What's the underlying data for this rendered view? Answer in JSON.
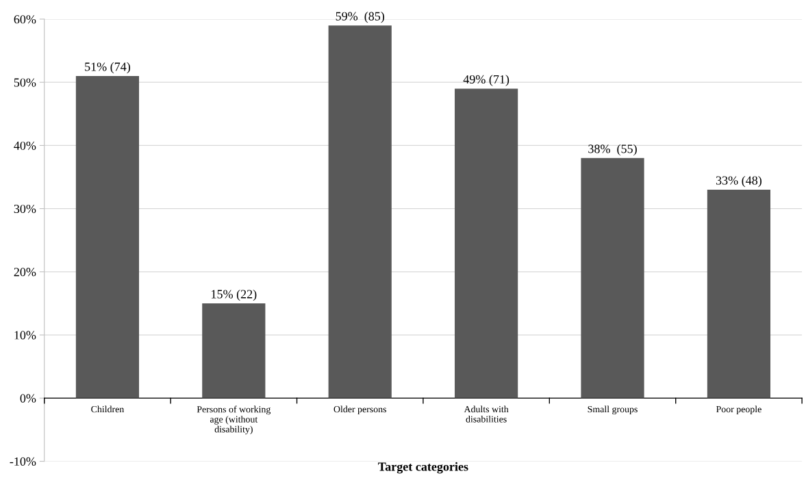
{
  "chart_data": {
    "type": "bar",
    "xlabel": "Target categories",
    "categories": [
      "Children",
      "Persons of working\nage (without\ndisability)",
      "Older persons",
      "Adults with\ndisabilities",
      "Small groups",
      "Poor people"
    ],
    "values": [
      51,
      15,
      59,
      49,
      38,
      33
    ],
    "value_labels": [
      "51% (74)",
      "15% (22)",
      "59%  (85)",
      "49% (71)",
      "38%  (55)",
      "33% (48)"
    ],
    "color": "#595959",
    "ylim": [
      -10,
      60
    ],
    "yticks": [
      {
        "value": -10,
        "label": "-10%"
      },
      {
        "value": 0,
        "label": "0%"
      },
      {
        "value": 10,
        "label": "10%"
      },
      {
        "value": 20,
        "label": "20%"
      },
      {
        "value": 30,
        "label": "30%"
      },
      {
        "value": 40,
        "label": "40%"
      },
      {
        "value": 50,
        "label": "50%"
      },
      {
        "value": 60,
        "label": "60%"
      }
    ],
    "grid": "y",
    "legend": false
  }
}
